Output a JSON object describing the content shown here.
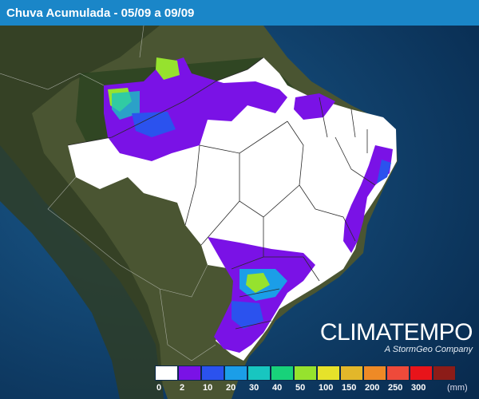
{
  "header": {
    "title": "Chuva Acumulada - 05/09 a 09/09"
  },
  "brand": {
    "name": "CLIMATEMPO",
    "tagline": "A StormGeo Company"
  },
  "legend": {
    "unit": "(mm)",
    "classes": [
      {
        "label": "0",
        "color": "#ffffff"
      },
      {
        "label": "2",
        "color": "#7a12e6"
      },
      {
        "label": "10",
        "color": "#2b52ee"
      },
      {
        "label": "20",
        "color": "#1b9ee8"
      },
      {
        "label": "30",
        "color": "#18c6c0"
      },
      {
        "label": "40",
        "color": "#18d27a"
      },
      {
        "label": "50",
        "color": "#96e22e"
      },
      {
        "label": "100",
        "color": "#e6e22a"
      },
      {
        "label": "150",
        "color": "#e2b72a"
      },
      {
        "label": "200",
        "color": "#ee8a26"
      },
      {
        "label": "250",
        "color": "#ee4a3a"
      },
      {
        "label": "300",
        "color": "#e8141a"
      },
      {
        "label": "",
        "color": "#8c1c18"
      }
    ]
  },
  "colors": {
    "ocean": "#0f3e6a",
    "land": "#3a4a2a",
    "rain_none": "#ffffff"
  }
}
